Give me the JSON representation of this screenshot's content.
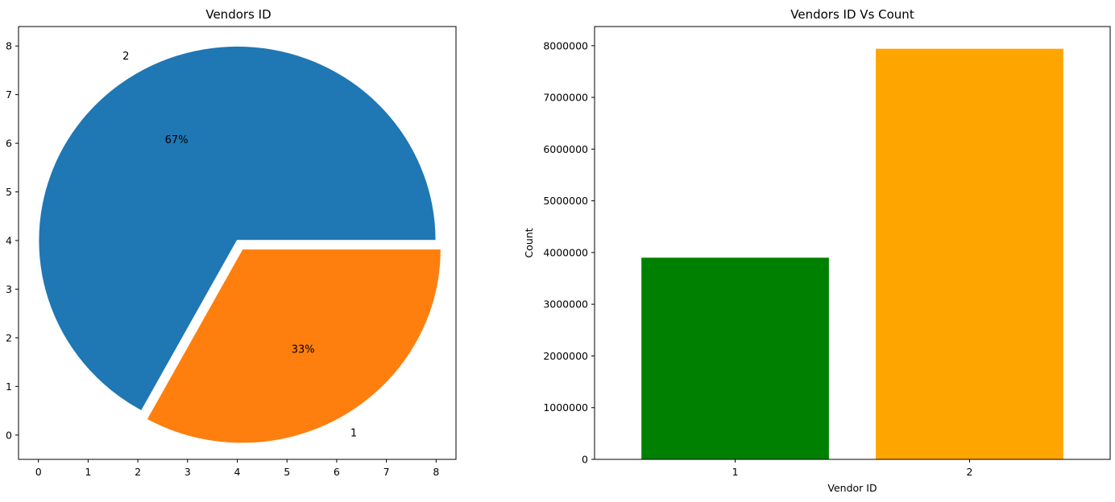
{
  "chart_data": [
    {
      "type": "pie",
      "title": "Vendors ID",
      "labels": [
        "2",
        "1"
      ],
      "values": [
        67,
        33
      ],
      "pct_labels": [
        "67%",
        "33%"
      ],
      "colors": [
        "#1f77b4",
        "#ff7f0e"
      ],
      "explode": [
        0,
        0.05
      ],
      "center": [
        4,
        4
      ],
      "radius": 4,
      "xlim": [
        -0.4,
        8.4
      ],
      "ylim": [
        -0.5,
        8.4
      ],
      "xticks": [
        "0",
        "1",
        "2",
        "3",
        "4",
        "5",
        "6",
        "7",
        "8"
      ],
      "yticks": [
        "0",
        "1",
        "2",
        "3",
        "4",
        "5",
        "6",
        "7",
        "8"
      ],
      "grid": false
    },
    {
      "type": "bar",
      "title": "Vendors ID Vs Count",
      "xlabel": "Vendor ID",
      "ylabel": "Count",
      "categories": [
        "1",
        "2"
      ],
      "values": [
        3900000,
        7940000
      ],
      "colors": [
        "#008000",
        "#ffa500"
      ],
      "ylim": [
        0,
        8370000
      ],
      "yticks": [
        "0",
        "1000000",
        "2000000",
        "3000000",
        "4000000",
        "5000000",
        "6000000",
        "7000000",
        "8000000"
      ],
      "grid": false
    }
  ]
}
